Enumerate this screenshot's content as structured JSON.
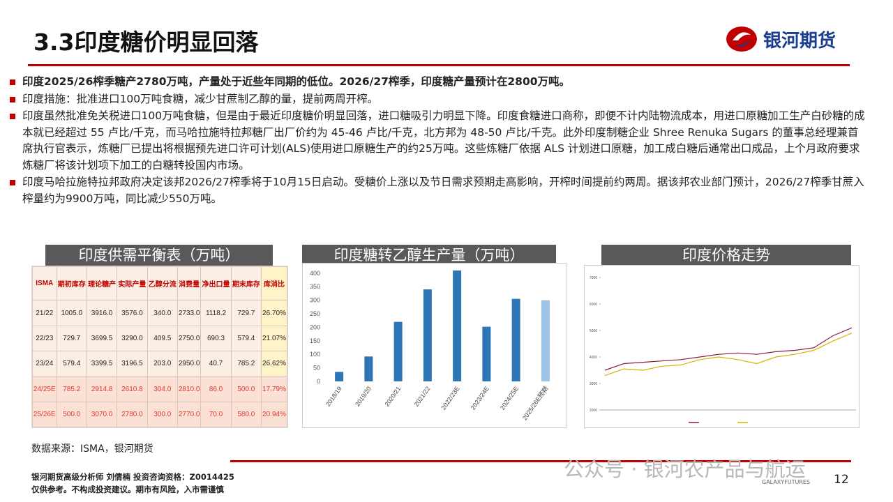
{
  "header": {
    "title": "3.3印度糖价明显回落",
    "logo": "银河期货"
  },
  "bullets": [
    "印度2025/26榨季糖产2780万吨，产量处于近些年同期的低位。2026/27榨季，印度糖产量预计在2800万吨。",
    "印度措施：批准进口100万吨食糖，减少甘蔗制乙醇的量，提前两周开榨。",
    "印度虽然批准免关税进口100万吨食糖，但是由于最近印度糖价明显回落，进口糖吸引力明显下降。印度食糖进口商称，即便不计内陆物流成本，用进口原糖加工生产白砂糖的成本就已经超过 55 卢比/千克，而马哈拉施特拉邦糖厂出厂价约为 45-46 卢比/千克，北方邦为 48-50 卢比/千克。此外印度制糖企业 Shree Renuka Sugars 的董事总经理兼首席执行官表示，炼糖厂已提出将根据预先进口许可计划(ALS)使用进口原糖生产的约25万吨。这些炼糖厂依据 ALS 计划进口原糖，加工成白糖后通常出口成品，上个月政府要求炼糖厂将该计划项下加工的白糖转投国内市场。",
    "印度马哈拉施特拉邦政府决定该邦2026/27榨季将于10月15日启动。受糖价上涨以及节日需求预期走高影响，开榨时间提前约两周。据该邦农业部门预计，2026/27榨季甘蔗入榨量约为9900万吨，同比减少550万吨。"
  ],
  "table": {
    "title": "印度供需平衡表（万吨）",
    "header": [
      "ISMA",
      "期初库存",
      "理论糖产",
      "实际产量",
      "乙醇分流",
      "消费量",
      "净出口量",
      "期末库存",
      "库消比"
    ],
    "rows": [
      [
        "21/22",
        "1005.0",
        "3916.0",
        "3576.0",
        "340.0",
        "2733.0",
        "1118.2",
        "729.7",
        "26.70%"
      ],
      [
        "22/23",
        "729.7",
        "3699.5",
        "3290.0",
        "409.5",
        "2750.0",
        "690.3",
        "579.4",
        "21.07%"
      ],
      [
        "23/24",
        "579.4",
        "3399.5",
        "3196.5",
        "203.0",
        "2950.0",
        "40.7",
        "785.2",
        "26.62%"
      ],
      [
        "24/25E",
        "785.2",
        "2914.8",
        "2610.8",
        "304.0",
        "2810.0",
        "86.0",
        "500.0",
        "17.79%"
      ],
      [
        "25/26E",
        "500.0",
        "3070.0",
        "2780.0",
        "300.0",
        "2770.0",
        "70.0",
        "580.0",
        "20.94%"
      ]
    ]
  },
  "chart_data": [
    {
      "type": "bar",
      "title": "印度糖转乙醇生产量（万吨）",
      "categories": [
        "2018/19",
        "2019/20",
        "2020/21",
        "2021/22",
        "2022/23E",
        "2023/24E",
        "2024/25E",
        "2025/26E预期"
      ],
      "values": [
        35,
        92,
        220,
        340,
        410,
        202,
        305,
        300
      ],
      "colors": [
        "#2e75b6",
        "#2e75b6",
        "#2e75b6",
        "#2e75b6",
        "#2e75b6",
        "#2e75b6",
        "#2e75b6",
        "#9dc3e6"
      ],
      "ylim": [
        0,
        420
      ],
      "yticks": [
        0,
        50,
        100,
        150,
        200,
        250,
        300,
        350,
        400
      ]
    },
    {
      "type": "line",
      "title": "印度价格走势",
      "series": [
        {
          "color": "#8b1a3a",
          "values": [
            3500,
            3750,
            3800,
            3850,
            3900,
            4000,
            4100,
            4150,
            4100,
            4200,
            4250,
            4350,
            4800,
            5100
          ]
        },
        {
          "color": "#d4b400",
          "values": [
            3300,
            3550,
            3500,
            3650,
            3700,
            3900,
            4000,
            3900,
            3750,
            4000,
            4100,
            4250,
            4600,
            4900
          ]
        }
      ],
      "ylim": [
        2000,
        7000
      ],
      "yticks": [
        2000,
        3000,
        4000,
        5000,
        6000,
        7000
      ]
    }
  ],
  "footer": {
    "source": "数据来源：ISMA，银河期货",
    "analyst": "银河期货高级分析师 刘倩楠 投资咨询资格：Z0014425",
    "disclaimer": "仅供参考。不构成投资建议。期市有风险，入市需谨慎",
    "watermark": "公众号 · 银河农产品与航运",
    "brand": "GALAXYFUTURES",
    "page": "12"
  }
}
